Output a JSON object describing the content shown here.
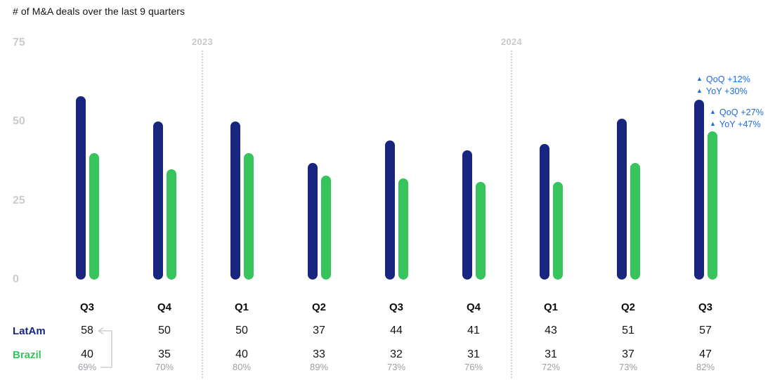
{
  "title": "# of M&A deals over the last 9 quarters",
  "colors": {
    "latam": "#18267f",
    "brazil": "#37c45c",
    "annotation_blue": "#1e6ae0",
    "axis_gray": "#c9cbcd",
    "ratio_gray": "#9b9fa3",
    "text_black": "#141414"
  },
  "chart_data": {
    "type": "bar",
    "title": "# of M&A deals over the last 9 quarters",
    "categories": [
      "Q3",
      "Q4",
      "Q1",
      "Q2",
      "Q3",
      "Q4",
      "Q1",
      "Q2",
      "Q3"
    ],
    "year_groups": [
      {
        "label": "2023",
        "divider_before_index": 2
      },
      {
        "label": "2024",
        "divider_before_index": 6
      }
    ],
    "series": [
      {
        "name": "LatAm",
        "color": "#18267f",
        "values": [
          58,
          50,
          50,
          37,
          44,
          41,
          43,
          51,
          57
        ]
      },
      {
        "name": "Brazil",
        "color": "#37c45c",
        "values": [
          40,
          35,
          40,
          33,
          32,
          31,
          31,
          37,
          47
        ]
      }
    ],
    "ratio_row": [
      "69%",
      "70%",
      "80%",
      "89%",
      "73%",
      "76%",
      "72%",
      "73%",
      "82%"
    ],
    "yticks": [
      75,
      50,
      25,
      0
    ],
    "ylim": [
      0,
      75
    ],
    "grid": false,
    "legend_position": "table-left",
    "annotations": [
      {
        "target": "LatAm",
        "lines": [
          {
            "icon": "up-triangle",
            "text": "QoQ +12%"
          },
          {
            "icon": "up-triangle",
            "text": "YoY +30%"
          }
        ]
      },
      {
        "target": "Brazil",
        "lines": [
          {
            "icon": "up-triangle",
            "text": "QoQ +27%"
          },
          {
            "icon": "up-triangle",
            "text": "YoY +47%"
          }
        ]
      }
    ],
    "ratio_connector": {
      "from_value": "58",
      "to_value": "69%",
      "column_index": 0
    }
  }
}
